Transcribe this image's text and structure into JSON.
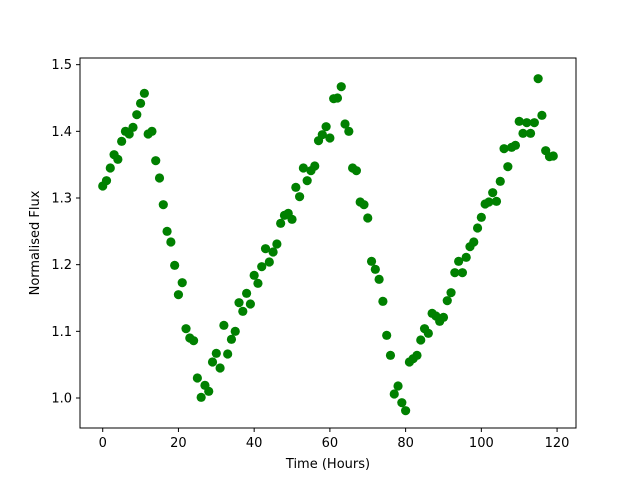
{
  "chart_data": {
    "type": "scatter",
    "title": "",
    "xlabel": "Time (Hours)",
    "ylabel": "Normalised Flux",
    "xlim": [
      -6,
      125
    ],
    "ylim": [
      0.955,
      1.51
    ],
    "xticks": [
      0,
      20,
      40,
      60,
      80,
      100,
      120
    ],
    "yticks": [
      1.0,
      1.1,
      1.2,
      1.3,
      1.4,
      1.5
    ],
    "xtick_labels": [
      "0",
      "20",
      "40",
      "60",
      "80",
      "100",
      "120"
    ],
    "ytick_labels": [
      "1.0",
      "1.1",
      "1.2",
      "1.3",
      "1.4",
      "1.5"
    ],
    "grid": false,
    "legend": "none",
    "marker_color": "#008000",
    "series": [
      {
        "x": [
          0,
          1,
          2,
          3,
          4,
          5,
          6,
          7,
          8,
          9,
          10,
          11,
          12,
          13,
          14,
          15,
          16,
          17,
          18,
          19,
          20,
          21,
          22,
          23,
          24,
          25,
          26,
          27,
          28,
          29,
          30,
          31,
          32,
          33,
          34,
          35,
          36,
          37,
          38,
          39,
          40,
          41,
          42,
          43,
          44,
          45,
          46,
          47,
          48,
          49,
          50,
          51,
          52,
          53,
          54,
          55,
          56,
          57,
          58,
          59,
          60,
          61,
          62,
          63,
          64,
          65,
          66,
          67,
          68,
          69,
          70,
          71,
          72,
          73,
          74,
          75,
          76,
          77,
          78,
          79,
          80,
          81,
          82,
          83,
          84,
          85,
          86,
          87,
          88,
          89,
          90,
          91,
          92,
          93,
          94,
          95,
          96,
          97,
          98,
          99,
          100,
          101,
          102,
          103,
          104,
          105,
          106,
          107,
          108,
          109,
          110,
          111,
          112,
          113,
          114,
          115,
          116,
          117,
          118,
          119
        ],
        "y": [
          1.318,
          1.326,
          1.345,
          1.365,
          1.358,
          1.385,
          1.4,
          1.396,
          1.406,
          1.425,
          1.442,
          1.457,
          1.396,
          1.4,
          1.356,
          1.33,
          1.29,
          1.25,
          1.234,
          1.199,
          1.155,
          1.173,
          1.104,
          1.09,
          1.086,
          1.03,
          1.001,
          1.019,
          1.01,
          1.054,
          1.067,
          1.045,
          1.109,
          1.066,
          1.088,
          1.1,
          1.143,
          1.13,
          1.157,
          1.141,
          1.184,
          1.172,
          1.197,
          1.224,
          1.204,
          1.219,
          1.231,
          1.262,
          1.274,
          1.277,
          1.268,
          1.316,
          1.302,
          1.345,
          1.326,
          1.341,
          1.348,
          1.386,
          1.395,
          1.407,
          1.39,
          1.449,
          1.45,
          1.467,
          1.411,
          1.4,
          1.345,
          1.341,
          1.294,
          1.29,
          1.27,
          1.205,
          1.193,
          1.178,
          1.145,
          1.094,
          1.064,
          1.006,
          1.018,
          0.993,
          0.981,
          1.054,
          1.059,
          1.064,
          1.087,
          1.104,
          1.097,
          1.127,
          1.123,
          1.115,
          1.121,
          1.146,
          1.158,
          1.188,
          1.205,
          1.188,
          1.211,
          1.227,
          1.234,
          1.255,
          1.271,
          1.291,
          1.294,
          1.308,
          1.295,
          1.325,
          1.374,
          1.347,
          1.376,
          1.379,
          1.415,
          1.397,
          1.413,
          1.397,
          1.413,
          1.479,
          1.424,
          1.371,
          1.362,
          1.363
        ]
      }
    ]
  }
}
